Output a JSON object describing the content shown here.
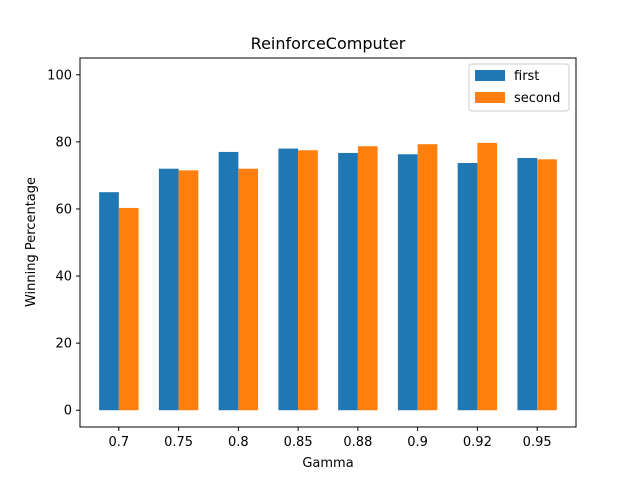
{
  "chart_data": {
    "type": "bar",
    "title": "ReinforceComputer",
    "xlabel": "Gamma",
    "ylabel": "Winning Percentage",
    "categories": [
      "0.7",
      "0.75",
      "0.8",
      "0.85",
      "0.88",
      "0.9",
      "0.92",
      "0.95"
    ],
    "series": [
      {
        "name": "first",
        "color": "#1f77b4",
        "values": [
          65,
          72,
          77,
          78,
          76.7,
          76.3,
          73.7,
          75.2
        ]
      },
      {
        "name": "second",
        "color": "#ff7f0e",
        "values": [
          60.3,
          71.5,
          72,
          77.5,
          78.7,
          79.3,
          79.7,
          74.8
        ]
      }
    ],
    "ylim": [
      -5,
      105
    ],
    "yticks": [
      0,
      20,
      40,
      60,
      80,
      100
    ],
    "grid": false,
    "legend_position": "top-right"
  }
}
